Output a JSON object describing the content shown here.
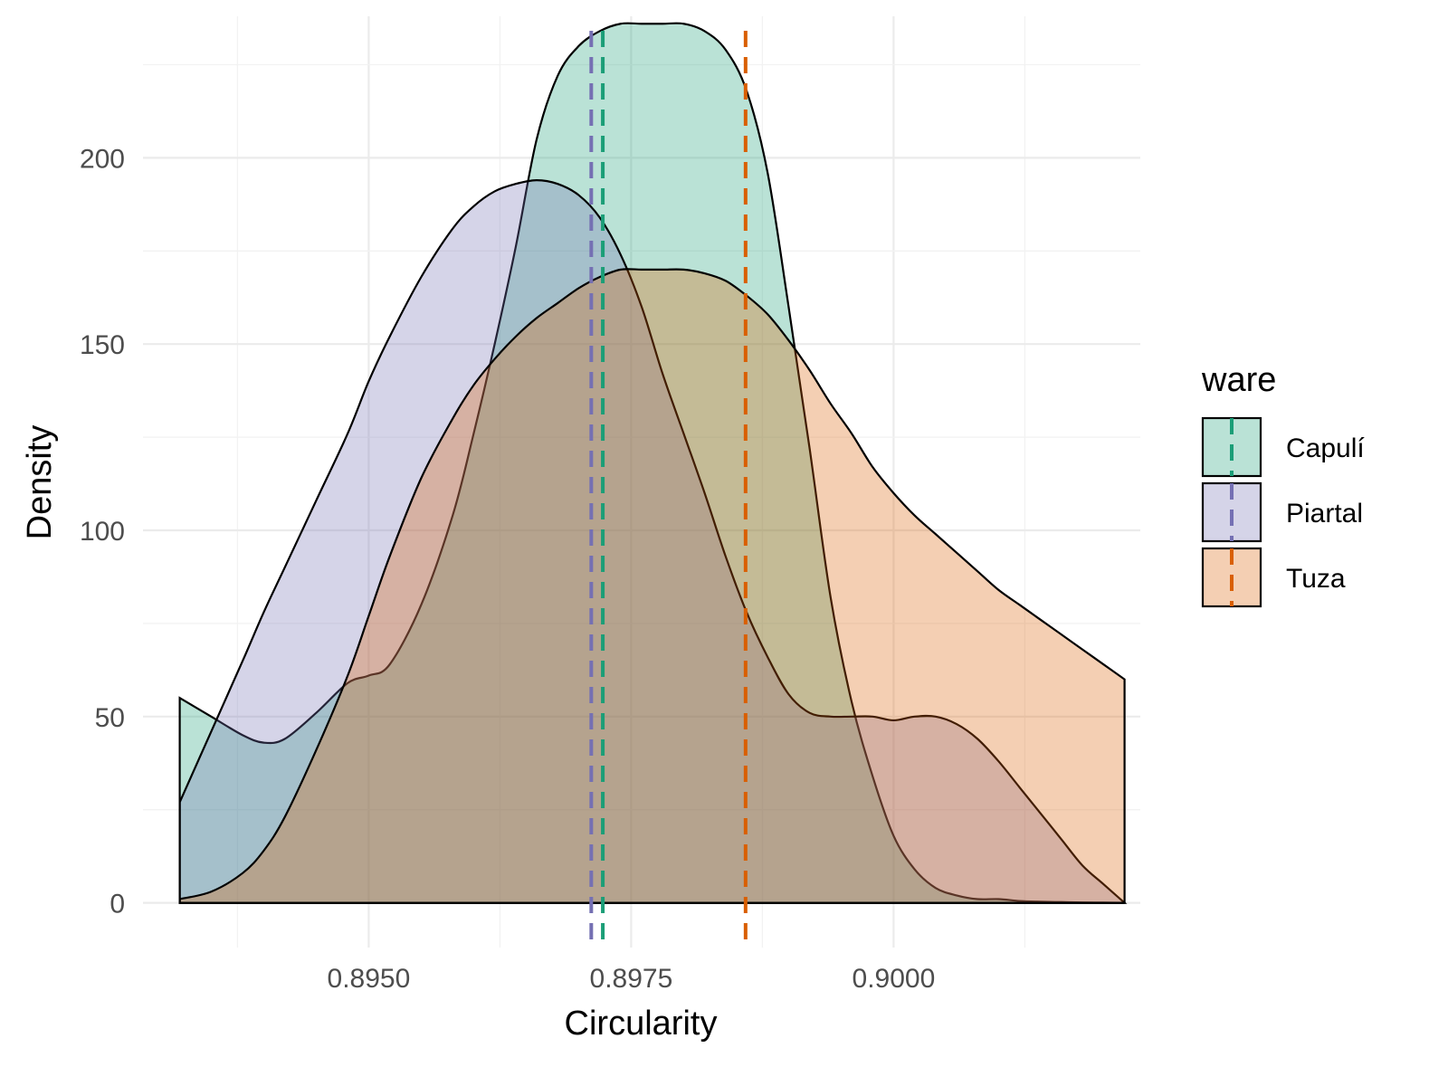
{
  "chart_data": {
    "type": "area",
    "subtype": "density",
    "title": "",
    "xlabel": "Circularity",
    "ylabel": "Density",
    "xlim": [
      0.89285,
      0.90235
    ],
    "ylim": [
      -12,
      238
    ],
    "x_ticks": [
      0.895,
      0.8975,
      0.9
    ],
    "x_tick_labels": [
      "0.8950",
      "0.8975",
      "0.9000"
    ],
    "y_ticks": [
      0,
      50,
      100,
      150,
      200
    ],
    "y_tick_labels": [
      "0",
      "50",
      "100",
      "150",
      "200"
    ],
    "grid": true,
    "legend": {
      "title": "ware",
      "position": "right"
    },
    "series": [
      {
        "name": "Capulí",
        "color": "#1B9E77",
        "mean": 0.89723,
        "x": [
          0.8932,
          0.8935,
          0.8938,
          0.894,
          0.8942,
          0.8945,
          0.8948,
          0.895,
          0.8952,
          0.8955,
          0.8958,
          0.896,
          0.8962,
          0.8964,
          0.8966,
          0.8968,
          0.897,
          0.8972,
          0.8974,
          0.8976,
          0.8978,
          0.898,
          0.8982,
          0.8984,
          0.8986,
          0.8988,
          0.899,
          0.8992,
          0.8994,
          0.8996,
          0.8998,
          0.9,
          0.9002,
          0.9004,
          0.9006,
          0.9008,
          0.901,
          0.9012,
          0.9014,
          0.9016,
          0.9018,
          0.902,
          0.9022
        ],
        "y": [
          55,
          50,
          45,
          43,
          44,
          51,
          59,
          61,
          64,
          80,
          104,
          126,
          150,
          176,
          205,
          222,
          230,
          234,
          236,
          236,
          236,
          236,
          234,
          229,
          218,
          196,
          160,
          122,
          82,
          54,
          34,
          18,
          9,
          4,
          2,
          1,
          1,
          0.5,
          0.3,
          0.2,
          0.1,
          0.05,
          0
        ]
      },
      {
        "name": "Piartal",
        "color": "#7570B3",
        "mean": 0.89712,
        "x": [
          0.8932,
          0.8935,
          0.8938,
          0.894,
          0.8942,
          0.8945,
          0.8948,
          0.895,
          0.8952,
          0.8955,
          0.8958,
          0.896,
          0.8962,
          0.8964,
          0.8966,
          0.8968,
          0.897,
          0.8972,
          0.8974,
          0.8976,
          0.8978,
          0.898,
          0.8982,
          0.8984,
          0.8986,
          0.8988,
          0.899,
          0.8992,
          0.8994,
          0.8996,
          0.8998,
          0.9,
          0.9002,
          0.9004,
          0.9006,
          0.9008,
          0.901,
          0.9012,
          0.9014,
          0.9016,
          0.9018,
          0.902,
          0.9022
        ],
        "y": [
          27,
          46,
          65,
          78,
          90,
          108,
          126,
          140,
          152,
          168,
          181,
          187,
          191,
          193,
          194,
          193,
          190,
          184,
          174,
          160,
          142,
          126,
          110,
          93,
          78,
          66,
          56,
          51,
          50,
          50,
          50,
          49,
          50,
          50,
          48,
          44,
          38,
          31,
          24,
          17,
          10,
          5,
          0
        ]
      },
      {
        "name": "Tuza",
        "color": "#D95F02",
        "mean": 0.89859,
        "x": [
          0.8932,
          0.8935,
          0.8938,
          0.894,
          0.8942,
          0.8945,
          0.8948,
          0.895,
          0.8952,
          0.8955,
          0.8958,
          0.896,
          0.8962,
          0.8964,
          0.8966,
          0.8968,
          0.897,
          0.8972,
          0.8974,
          0.8976,
          0.8978,
          0.898,
          0.8982,
          0.8984,
          0.8986,
          0.8988,
          0.899,
          0.8992,
          0.8994,
          0.8996,
          0.8998,
          0.9,
          0.9002,
          0.9004,
          0.9006,
          0.9008,
          0.901,
          0.9012,
          0.9014,
          0.9016,
          0.9018,
          0.902,
          0.9022
        ],
        "y": [
          1,
          3,
          8,
          14,
          23,
          41,
          61,
          77,
          93,
          114,
          130,
          139,
          146,
          152,
          157,
          161,
          165,
          168,
          170,
          170,
          170,
          170,
          169,
          167,
          163,
          158,
          151,
          143,
          134,
          126,
          117,
          110,
          104,
          99,
          94,
          89,
          84,
          80,
          76,
          72,
          68,
          64,
          60
        ]
      }
    ]
  }
}
